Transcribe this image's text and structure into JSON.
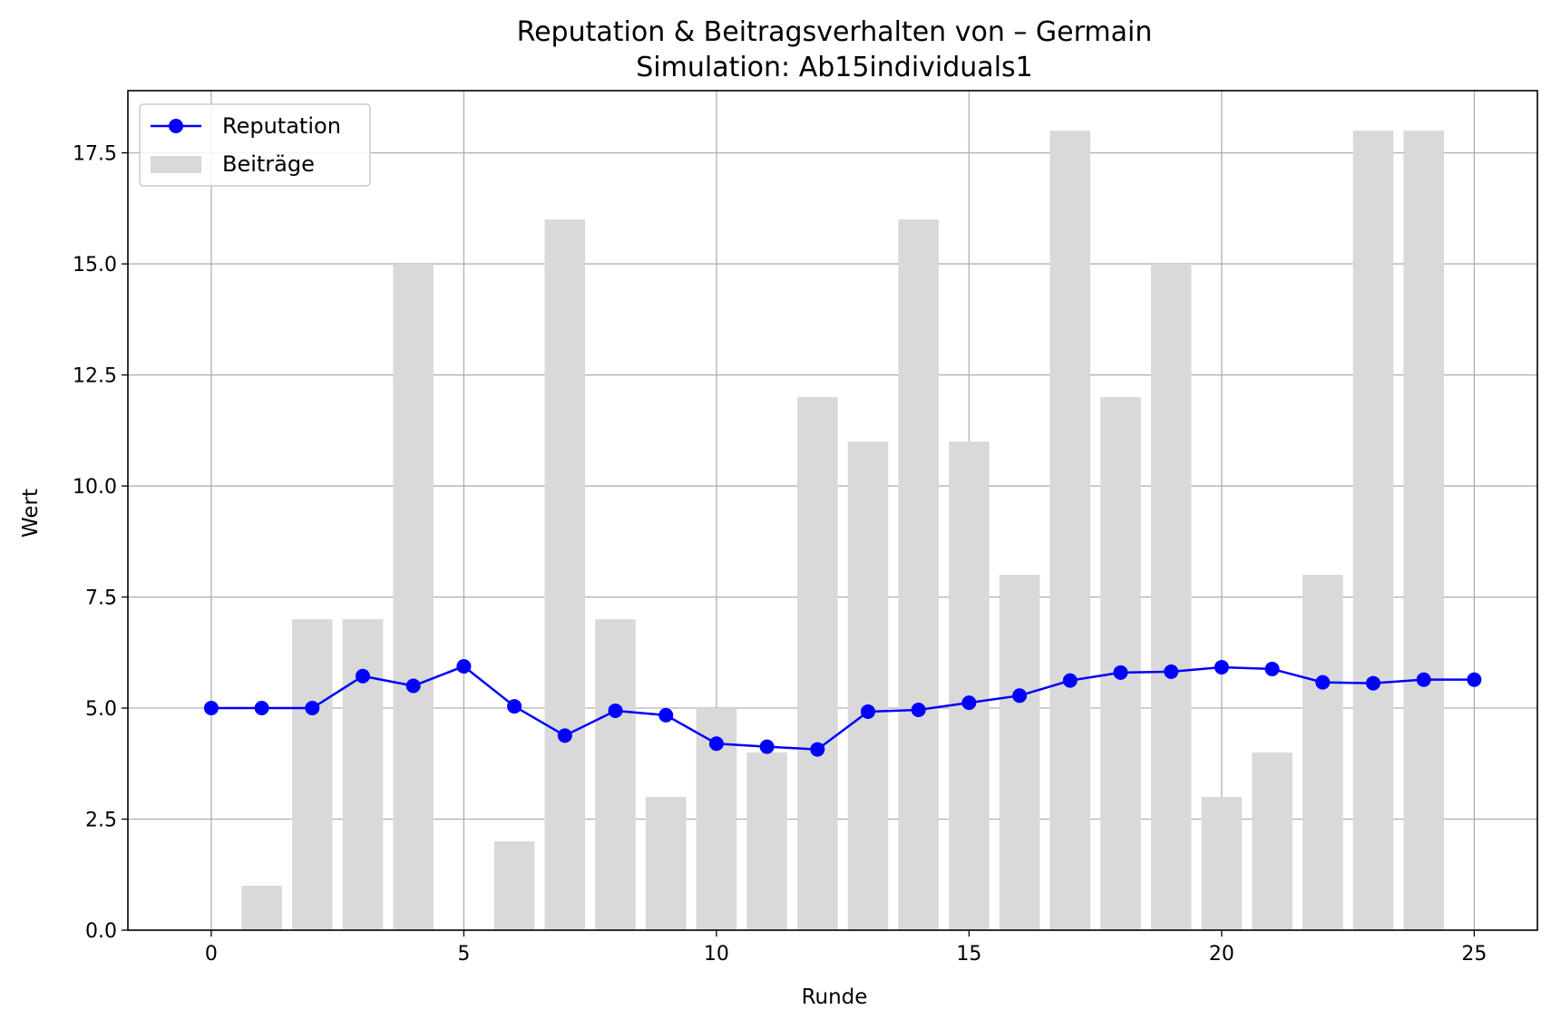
{
  "chart_data": {
    "type": "bar",
    "title": "Reputation & Beitragsverhalten von – Germain",
    "subtitle": "Simulation: Ab15individuals1",
    "xlabel": "Runde",
    "ylabel": "Wert",
    "xlim": [
      -1.65,
      26.25
    ],
    "ylim": [
      0,
      18.9
    ],
    "x_ticks": [
      0,
      5,
      10,
      15,
      20,
      25
    ],
    "x_tick_labels": [
      "0",
      "5",
      "10",
      "15",
      "20",
      "25"
    ],
    "y_ticks": [
      0,
      2.5,
      5,
      7.5,
      10,
      12.5,
      15,
      17.5
    ],
    "y_tick_labels": [
      "0.0",
      "2.5",
      "5.0",
      "7.5",
      "10.0",
      "12.5",
      "15.0",
      "17.5"
    ],
    "grid": true,
    "legend_position": "top-left",
    "series": [
      {
        "name": "Reputation",
        "kind": "line",
        "marker": "circle",
        "color": "#0000ff",
        "x": [
          0,
          1,
          2,
          3,
          4,
          5,
          6,
          7,
          8,
          9,
          10,
          11,
          12,
          13,
          14,
          15,
          16,
          17,
          18,
          19,
          20,
          21,
          22,
          23,
          24,
          25
        ],
        "values": [
          5.0,
          5.0,
          5.0,
          5.72,
          5.5,
          5.94,
          5.04,
          4.38,
          4.94,
          4.84,
          4.2,
          4.13,
          4.07,
          4.92,
          4.96,
          5.12,
          5.28,
          5.62,
          5.8,
          5.82,
          5.92,
          5.88,
          5.58,
          5.56,
          5.64,
          5.64
        ]
      },
      {
        "name": "Beiträge",
        "kind": "bar",
        "color": "#d9d9d9",
        "x": [
          0,
          1,
          2,
          3,
          4,
          5,
          6,
          7,
          8,
          9,
          10,
          11,
          12,
          13,
          14,
          15,
          16,
          17,
          18,
          19,
          20,
          21,
          22,
          23,
          24
        ],
        "values": [
          0,
          1,
          7,
          7,
          15,
          0,
          2,
          16,
          7,
          3,
          5,
          4,
          12,
          11,
          16,
          11,
          8,
          18,
          12,
          15,
          3,
          4,
          8,
          18,
          18
        ]
      }
    ]
  }
}
